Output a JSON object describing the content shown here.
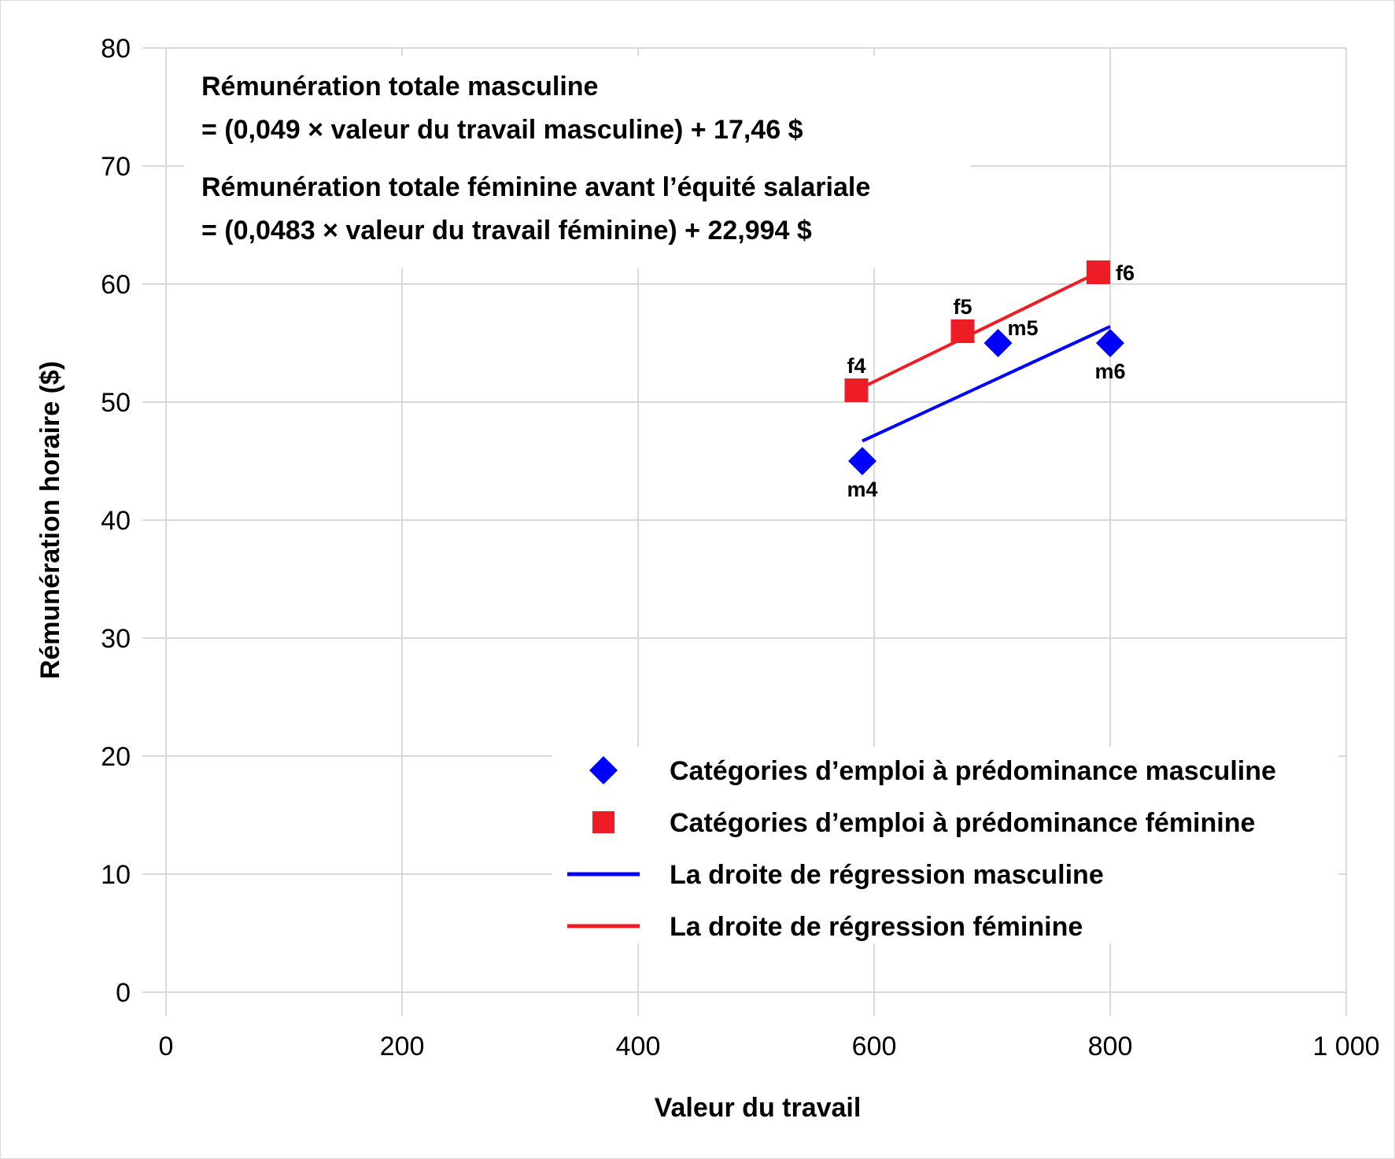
{
  "chart_data": {
    "type": "scatter",
    "xlabel": "Valeur du travail",
    "ylabel": "Rémunération horaire ($)",
    "xlim": [
      0,
      1000
    ],
    "ylim": [
      0,
      80
    ],
    "x_ticks": [
      0,
      200,
      400,
      600,
      800,
      1000
    ],
    "x_tick_labels": [
      "0",
      "200",
      "400",
      "600",
      "800",
      "1 000"
    ],
    "y_ticks": [
      0,
      10,
      20,
      30,
      40,
      50,
      60,
      70,
      80
    ],
    "y_tick_labels": [
      "0",
      "10",
      "20",
      "30",
      "40",
      "50",
      "60",
      "70",
      "80"
    ],
    "grid": true,
    "legend_position": "bottom-right",
    "annotations": [
      "Rémunération totale masculine",
      "= (0,049 × valeur du travail masculine) + 17,46 $",
      "Rémunération totale féminine avant l’équité salariale",
      "= (0,0483 × valeur du travail féminine) + 22,994 $"
    ],
    "series": [
      {
        "name": "Catégories d’emploi à prédominance masculine",
        "kind": "points",
        "marker": "diamond",
        "color": "#0000ff",
        "points": [
          {
            "label": "m4",
            "x": 590,
            "y": 45
          },
          {
            "label": "m5",
            "x": 705,
            "y": 55
          },
          {
            "label": "m6",
            "x": 800,
            "y": 55
          }
        ]
      },
      {
        "name": "Catégories d’emploi à prédominance féminine",
        "kind": "points",
        "marker": "square",
        "color": "#ee1c25",
        "points": [
          {
            "label": "f4",
            "x": 585,
            "y": 51
          },
          {
            "label": "f5",
            "x": 675,
            "y": 56
          },
          {
            "label": "f6",
            "x": 790,
            "y": 61
          }
        ]
      },
      {
        "name": "La droite de régression masculine",
        "kind": "line",
        "color": "#0000ff",
        "points": [
          {
            "x": 590,
            "y": 46.7
          },
          {
            "x": 800,
            "y": 56.4
          }
        ]
      },
      {
        "name": "La droite de régression féminine",
        "kind": "line",
        "color": "#ee1c25",
        "points": [
          {
            "x": 585,
            "y": 51.0
          },
          {
            "x": 790,
            "y": 61.0
          }
        ]
      }
    ]
  }
}
